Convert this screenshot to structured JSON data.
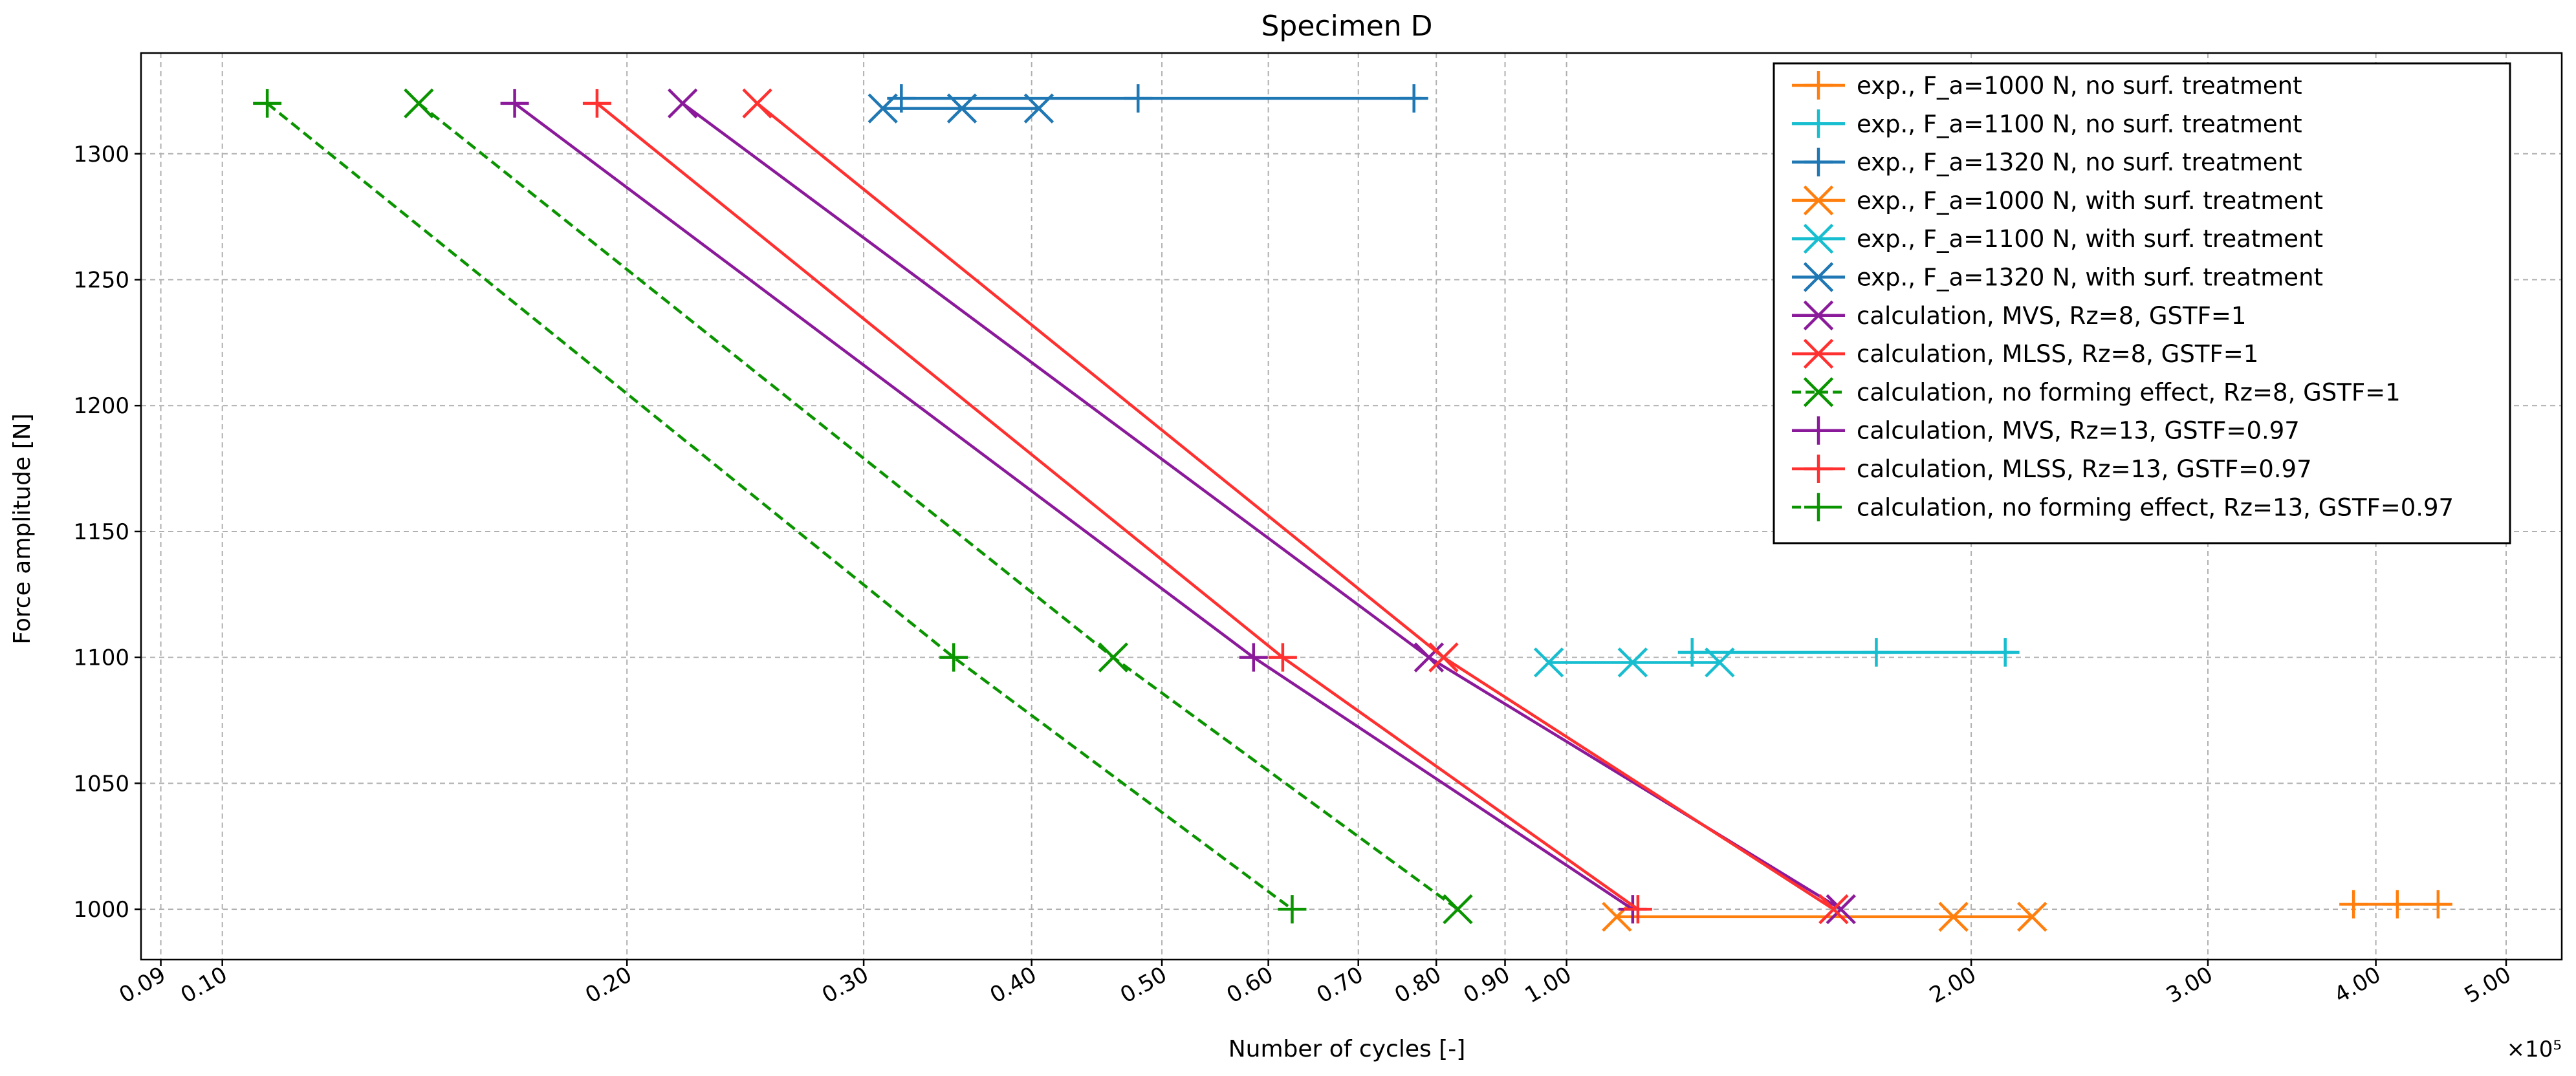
{
  "chart_data": {
    "type": "line",
    "title": "Specimen D",
    "xlabel": "Number of cycles [-]",
    "ylabel": "Force amplitude [N]",
    "x_multiplier": "×10⁵",
    "x_scale": "log",
    "x_unit_multiplier": 100000,
    "xlim": [
      0.087,
      5.5
    ],
    "ylim": [
      980,
      1340
    ],
    "x_ticks": [
      {
        "value": 0.09,
        "label": "0.09"
      },
      {
        "value": 0.1,
        "label": "0.10"
      },
      {
        "value": 0.2,
        "label": "0.20"
      },
      {
        "value": 0.3,
        "label": "0.30"
      },
      {
        "value": 0.4,
        "label": "0.40"
      },
      {
        "value": 0.5,
        "label": "0.50"
      },
      {
        "value": 0.6,
        "label": "0.60"
      },
      {
        "value": 0.7,
        "label": "0.70"
      },
      {
        "value": 0.8,
        "label": "0.80"
      },
      {
        "value": 0.9,
        "label": "0.90"
      },
      {
        "value": 1.0,
        "label": "1.00"
      },
      {
        "value": 2.0,
        "label": "2.00"
      },
      {
        "value": 3.0,
        "label": "3.00"
      },
      {
        "value": 4.0,
        "label": "4.00"
      },
      {
        "value": 5.0,
        "label": "5.00"
      }
    ],
    "y_ticks": [
      {
        "value": 1000,
        "label": "1000"
      },
      {
        "value": 1050,
        "label": "1050"
      },
      {
        "value": 1100,
        "label": "1100"
      },
      {
        "value": 1150,
        "label": "1150"
      },
      {
        "value": 1200,
        "label": "1200"
      },
      {
        "value": 1250,
        "label": "1250"
      },
      {
        "value": 1300,
        "label": "1300"
      }
    ],
    "grid": true,
    "legend_position": "top-right",
    "series": [
      {
        "name": "exp., F_a=1000 N, no surf. treatment",
        "color": "#ff7f0e",
        "marker": "plus",
        "dash": "solid",
        "x": [
          3.85,
          4.15,
          4.45
        ],
        "y": [
          1002,
          1002,
          1002
        ],
        "range": [
          3.85,
          4.55
        ]
      },
      {
        "name": "exp., F_a=1100 N, no surf. treatment",
        "color": "#17becf",
        "marker": "plus",
        "dash": "solid",
        "x": [
          1.24,
          1.7,
          2.12
        ],
        "y": [
          1102,
          1102,
          1102
        ],
        "range": [
          1.24,
          2.15
        ]
      },
      {
        "name": "exp., F_a=1320 N, no surf. treatment",
        "color": "#1f77b4",
        "marker": "plus",
        "dash": "solid",
        "x": [
          0.32,
          0.48,
          0.77
        ],
        "y": [
          1322,
          1322,
          1322
        ],
        "range": [
          0.32,
          0.78
        ]
      },
      {
        "name": "exp., F_a=1000 N, with surf. treatment",
        "color": "#ff7f0e",
        "marker": "x",
        "dash": "solid",
        "x": [
          1.09,
          1.94,
          2.22
        ],
        "y": [
          997,
          997,
          997
        ],
        "range": [
          1.09,
          2.22
        ]
      },
      {
        "name": "exp., F_a=1100 N, with surf. treatment",
        "color": "#17becf",
        "marker": "x",
        "dash": "solid",
        "x": [
          0.97,
          1.12,
          1.3
        ],
        "y": [
          1098,
          1098,
          1098
        ],
        "range": [
          0.97,
          1.3
        ]
      },
      {
        "name": "exp., F_a=1320 N, with surf. treatment",
        "color": "#1f77b4",
        "marker": "x",
        "dash": "solid",
        "x": [
          0.31,
          0.355,
          0.405
        ],
        "y": [
          1318,
          1318,
          1318
        ],
        "range": [
          0.31,
          0.405
        ]
      },
      {
        "name": "calculation, MVS, Rz=8, GSTF=1",
        "color": "#8b1a9b",
        "marker": "x",
        "dash": "solid",
        "x": [
          0.22,
          0.79,
          1.6
        ],
        "y": [
          1320,
          1100,
          1000
        ]
      },
      {
        "name": "calculation, MLSS, Rz=8, GSTF=1",
        "color": "#ff3030",
        "marker": "x",
        "dash": "solid",
        "x": [
          0.25,
          0.81,
          1.58
        ],
        "y": [
          1320,
          1100,
          1000
        ]
      },
      {
        "name": "calculation, no forming effect, Rz=8, GSTF=1",
        "color": "#0a9400",
        "marker": "x",
        "dash": "dashed",
        "x": [
          0.14,
          0.46,
          0.83
        ],
        "y": [
          1320,
          1100,
          1000
        ]
      },
      {
        "name": "calculation, MVS, Rz=13, GSTF=0.97",
        "color": "#8b1a9b",
        "marker": "plus",
        "dash": "solid",
        "x": [
          0.165,
          0.585,
          1.12
        ],
        "y": [
          1320,
          1100,
          1000
        ]
      },
      {
        "name": "calculation, MLSS, Rz=13, GSTF=0.97",
        "color": "#ff3030",
        "marker": "plus",
        "dash": "solid",
        "x": [
          0.19,
          0.615,
          1.13
        ],
        "y": [
          1320,
          1100,
          1000
        ]
      },
      {
        "name": "calculation, no forming effect, Rz=13, GSTF=0.97",
        "color": "#0a9400",
        "marker": "plus",
        "dash": "dashed",
        "x": [
          0.108,
          0.35,
          0.625
        ],
        "y": [
          1320,
          1100,
          1000
        ]
      }
    ]
  }
}
